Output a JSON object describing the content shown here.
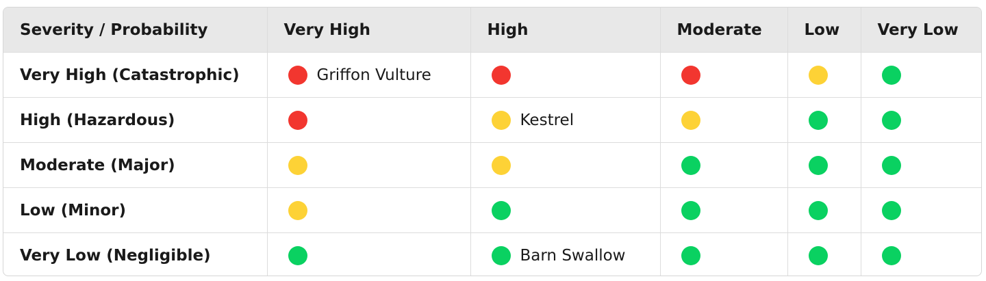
{
  "table": {
    "header": [
      "Severity / Probability",
      "Very High",
      "High",
      "Moderate",
      "Low",
      "Very Low"
    ],
    "rows": [
      {
        "label": "Very High (Catastrophic)",
        "cells": [
          {
            "color": "#f2362f",
            "text": "Griffon Vulture"
          },
          {
            "color": "#f2362f"
          },
          {
            "color": "#f2362f"
          },
          {
            "color": "#fdd236"
          },
          {
            "color": "#0ad161"
          }
        ]
      },
      {
        "label": "High (Hazardous)",
        "cells": [
          {
            "color": "#f2362f"
          },
          {
            "color": "#fdd236",
            "text": "Kestrel"
          },
          {
            "color": "#fdd236"
          },
          {
            "color": "#0ad161"
          },
          {
            "color": "#0ad161"
          }
        ]
      },
      {
        "label": "Moderate (Major)",
        "cells": [
          {
            "color": "#fdd236"
          },
          {
            "color": "#fdd236"
          },
          {
            "color": "#0ad161"
          },
          {
            "color": "#0ad161"
          },
          {
            "color": "#0ad161"
          }
        ]
      },
      {
        "label": "Low (Minor)",
        "cells": [
          {
            "color": "#fdd236"
          },
          {
            "color": "#0ad161"
          },
          {
            "color": "#0ad161"
          },
          {
            "color": "#0ad161"
          },
          {
            "color": "#0ad161"
          }
        ]
      },
      {
        "label": "Very Low (Negligible)",
        "cells": [
          {
            "color": "#0ad161"
          },
          {
            "color": "#0ad161",
            "text": "Barn Swallow"
          },
          {
            "color": "#0ad161"
          },
          {
            "color": "#0ad161"
          },
          {
            "color": "#0ad161"
          }
        ]
      }
    ]
  }
}
